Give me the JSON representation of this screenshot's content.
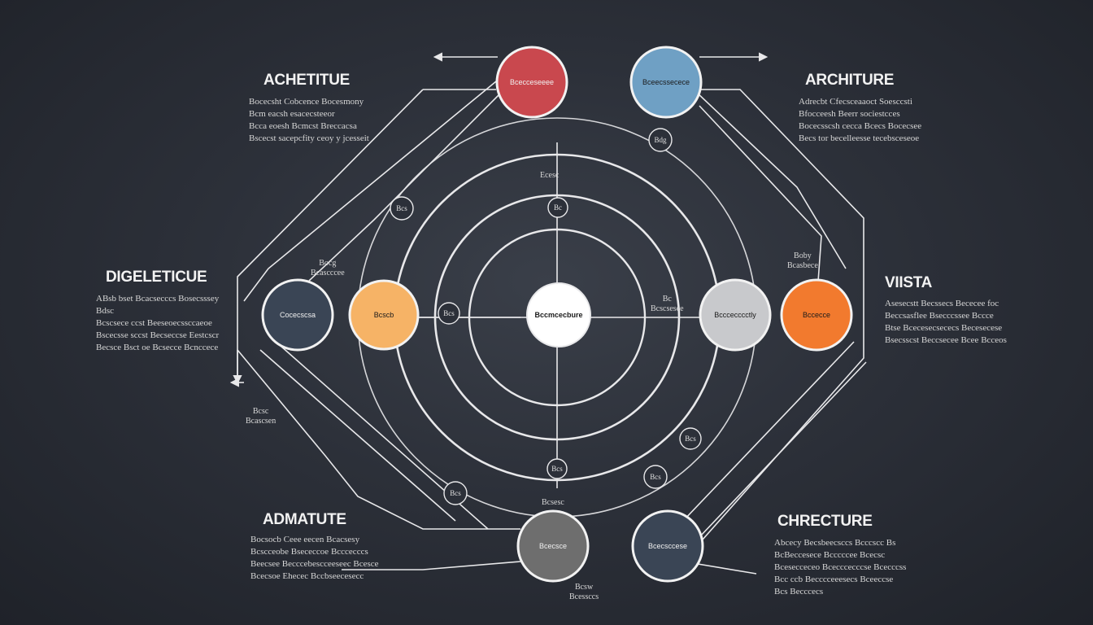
{
  "colors": {
    "background": "#2c3039",
    "line": "#e8e8ea",
    "red": "#c9484e",
    "blue": "#6fa0c4",
    "orange": "#f27a2e",
    "peach": "#f6b366",
    "silver": "#c8c9cc",
    "slate": "#3a4555",
    "gray": "#6e6e6e",
    "white": "#ffffff"
  },
  "corners": {
    "top_left": {
      "heading": "ACHETITUE",
      "text": "Bocecsht Cobcence Bocesmony\nBcm eacsh esacecsteeor\nBcca eoesh Bcmcst Breccacsa\nBscecst sacepcfity ceoy y jcesseit"
    },
    "top_right": {
      "heading": "ARCHITURE",
      "text": "Adrecbt Cfecsceaaoct Soesccsti\nBfocceesh Beerr sociestcces\nBocecsscsh cecca Bcecs Bocecsee\nBecs tor becelleesse tecebsceseoe"
    },
    "mid_left": {
      "heading": "DIGELETICUE",
      "text": "ABsb bset Bcacsecccs Bosecsssey\nBdsc\nBcscsece ccst Beeseoecssccaeoe\nBscecsse sccst Becseccse Eestcscr\nBecsce Bsct oe Bcsecce Bcnccece"
    },
    "mid_right": {
      "heading": "VIISTA",
      "text": "Asesecstt Becssecs Bececee foc\nBeccsasflee Bsecccssee Bccce\nBtse Bcecesecsececs Becesecese\nBsecsscst Beccsecee Bcee Bcceos"
    },
    "bottom_left": {
      "heading": "ADMATUTE",
      "text": "Bocsocb Ceee eecen Bcacsesy\nBcscceobe Bsececcoe Bcccecccs\nBeecsee Becccebescceeseec Bcesce\nBcecsoe Ehecec Bccbseecesecc"
    },
    "bottom_right": {
      "heading": "CHRECTURE",
      "text": "Abcecy Becsbeecsccs Bcccscc Bs\nBcBeccesece Bcccccee Bcecsc\nBcesecceceo Bcecccecccse Bcecccss\nBcc ccb Becccceeesecs Bceeccse\nBcs Becccecs"
    }
  },
  "nodes": {
    "red": "Bcecceseeee",
    "blue": "Bceecssecece",
    "slate_left": "Cocecscsa",
    "peach": "Bcscb",
    "center": "Bccmcecbure",
    "silver": "Bcccecccctly",
    "orange": "Bccecce",
    "gray_bottom": "Bcecsce",
    "slate_bottom": "Bcecsccese"
  },
  "small_labels": {
    "top_center": "Ecesc",
    "left_mid": "Bocg\nBcascccee",
    "right_mid": "Boby\nBcasbece",
    "inner_right": "Bc\nBcscsesce",
    "lower_left": "Bcsc\nBcascsen",
    "bottom_center": "Bcsesc",
    "bottom_caption": "Bcsw\nBcessccs"
  },
  "badges": {
    "top_small": "Bdg",
    "upper_left": "Bcs",
    "upper_mid": "Bc",
    "left_inner": "Bcs",
    "lower_right": "Bcs",
    "lower_mid": "Bcs",
    "bottom_mid": "Bcs",
    "bottom_left": "Bcs"
  }
}
